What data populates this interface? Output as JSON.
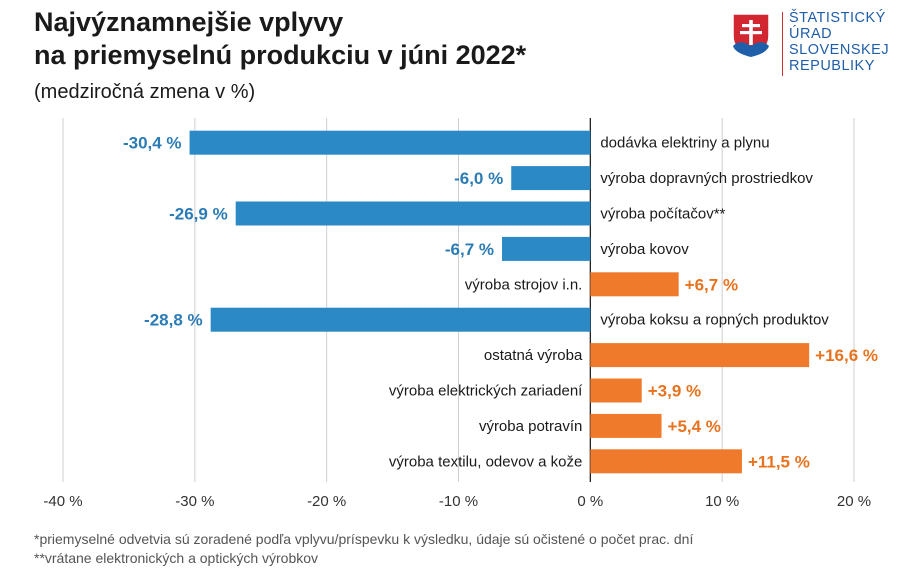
{
  "header": {
    "title_line1": "Najvýznamnejšie vplyvy",
    "title_line2": "na priemyselnú produkciu v júni 2022*",
    "subtitle": "(medziročná zmena v %)"
  },
  "logo": {
    "lines": [
      "ŠTATISTICKÝ",
      "ÚRAD",
      "SLOVENSKEJ",
      "REPUBLIKY"
    ],
    "color": "#1f5ea8"
  },
  "footnotes": {
    "line1": "*priemyselné odvetvia sú zoradené podľa vplyvu/príspevku k výsledku, údaje sú očistené o počet prac. dní",
    "line2": "**vrátane elektronických a optických výrobkov"
  },
  "chart_data": {
    "type": "bar",
    "orientation": "horizontal",
    "categories": [
      "dodávka elektriny a plynu",
      "výroba dopravných prostriedkov",
      "výroba počítačov**",
      "výroba kovov",
      "výroba strojov i.n.",
      "výroba koksu a ropných produktov",
      "ostatná výroba",
      "výroba elektrických zariadení",
      "výroba potravín",
      "výroba textilu, odevov a kože"
    ],
    "values": [
      -30.4,
      -6.0,
      -26.9,
      -6.7,
      6.7,
      -28.8,
      16.6,
      3.9,
      5.4,
      11.5
    ],
    "value_labels": [
      "-30,4 %",
      "-6,0 %",
      "-26,9 %",
      "-6,7 %",
      "+6,7 %",
      "-28,8 %",
      "+16,6 %",
      "+3,9 %",
      "+5,4 %",
      "+11,5 %"
    ],
    "xlim": [
      -40,
      20
    ],
    "xticks": [
      -40,
      -30,
      -20,
      -10,
      0,
      10,
      20
    ],
    "xtick_labels": [
      "-40 %",
      "-30 %",
      "-20 %",
      "-10 %",
      "0 %",
      "10 %",
      "20 %"
    ],
    "grid": "vertical",
    "colors": {
      "negative": "#2b8ac6",
      "positive": "#f07a2c",
      "negative_label": "#2b7bb5",
      "positive_label": "#e8731f"
    }
  }
}
